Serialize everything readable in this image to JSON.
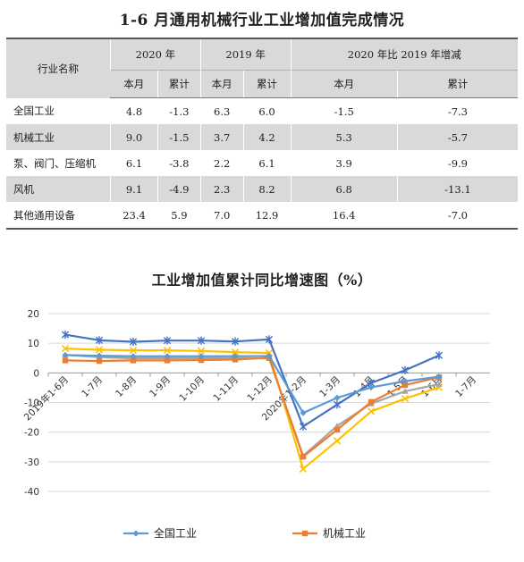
{
  "table": {
    "title": "1-6 月通用机械行业工业增加值完成情况",
    "header_name": "行业名称",
    "groups": [
      "2020 年",
      "2019 年",
      "2020 年比 2019 年增减"
    ],
    "subheaders": [
      "本月",
      "累计",
      "本月",
      "累计",
      "本月",
      "累计"
    ],
    "rows": [
      {
        "name": "全国工业",
        "values": [
          "4.8",
          "-1.3",
          "6.3",
          "6.0",
          "-1.5",
          "-7.3"
        ]
      },
      {
        "name": "机械工业",
        "values": [
          "9.0",
          "-1.5",
          "3.7",
          "4.2",
          "5.3",
          "-5.7"
        ]
      },
      {
        "name": "泵、阀门、压缩机",
        "values": [
          "6.1",
          "-3.8",
          "2.2",
          "6.1",
          "3.9",
          "-9.9"
        ]
      },
      {
        "name": "风机",
        "values": [
          "9.1",
          "-4.9",
          "2.3",
          "8.2",
          "6.8",
          "-13.1"
        ]
      },
      {
        "name": "其他通用设备",
        "values": [
          "23.4",
          "5.9",
          "7.0",
          "12.9",
          "16.4",
          "-7.0"
        ]
      }
    ]
  },
  "chart_data": {
    "type": "line",
    "title": "工业增加值累计同比增速图（%）",
    "categories": [
      "2019年1-6月",
      "1-7月",
      "1-8月",
      "1-9月",
      "1-10月",
      "1-11月",
      "1-12月",
      "2020年1-2月",
      "1-3月",
      "1-4月",
      "1-5月",
      "1-6月",
      "1-7月"
    ],
    "ylim": [
      -40,
      20
    ],
    "yticks": [
      20,
      10,
      0,
      -10,
      -20,
      -30,
      -40
    ],
    "grid": true,
    "legend_position": "bottom",
    "series": [
      {
        "name": "全国工业",
        "color": "#5b9bd5",
        "marker": "diamond",
        "values": [
          6.0,
          5.8,
          5.6,
          5.6,
          5.6,
          5.6,
          5.7,
          -13.5,
          -8.4,
          -4.9,
          -2.8,
          -1.3,
          null
        ]
      },
      {
        "name": "机械工业",
        "color": "#ed7d31",
        "marker": "square",
        "values": [
          4.2,
          4.0,
          4.2,
          4.2,
          4.3,
          4.5,
          5.1,
          -28.3,
          -19.2,
          -9.8,
          -4.1,
          -1.5,
          null
        ]
      },
      {
        "color": "#a5a5a5",
        "marker": "triangle",
        "values": [
          6.1,
          5.3,
          4.9,
          4.9,
          4.9,
          4.9,
          4.9,
          -28.0,
          -17.9,
          -10.4,
          -6.2,
          -3.8,
          null
        ]
      },
      {
        "color": "#ffc000",
        "marker": "cross",
        "values": [
          8.2,
          7.8,
          7.6,
          7.6,
          7.4,
          7.0,
          6.7,
          -32.4,
          -22.9,
          -13.0,
          -8.7,
          -4.9,
          null
        ]
      },
      {
        "color": "#4472c4",
        "marker": "star",
        "values": [
          12.9,
          11.0,
          10.5,
          10.9,
          10.9,
          10.6,
          11.3,
          -18.1,
          -10.7,
          -3.4,
          0.9,
          5.9,
          null
        ]
      }
    ],
    "legend": [
      {
        "name": "全国工业",
        "color": "#5b9bd5",
        "marker": "diamond"
      },
      {
        "name": "机械工业",
        "color": "#ed7d31",
        "marker": "square"
      }
    ]
  }
}
